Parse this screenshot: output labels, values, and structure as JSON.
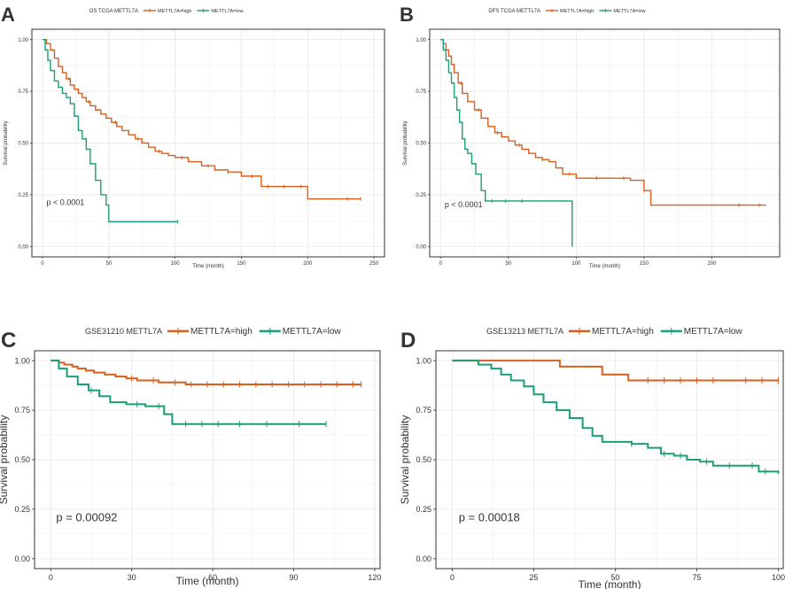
{
  "colors": {
    "high": "#D95F1E",
    "low": "#1B9E77",
    "grid": "#EBEBEB",
    "frame": "#333333"
  },
  "chart_data": [
    {
      "type": "line",
      "panel_label": "A",
      "title": "OS TCGA METTL7A",
      "xlabel": "Time (month)",
      "ylabel": "Survival probability",
      "xlim": [
        -8,
        258
      ],
      "ylim": [
        -0.05,
        1.05
      ],
      "xticks": [
        0,
        50,
        100,
        150,
        200,
        250
      ],
      "yticks": [
        0,
        0.25,
        0.5,
        0.75,
        1
      ],
      "ytick_labels": [
        "0.00",
        "0.25",
        "0.50",
        "0.75",
        "1.00"
      ],
      "p_value": "p < 0.0001",
      "p_pos": [
        3,
        0.2
      ],
      "legend": [
        "METTL7A=high",
        "METTL7A=low"
      ],
      "series": [
        {
          "name": "METTL7A=high",
          "color_key": "high",
          "x": [
            0,
            3,
            6,
            9,
            12,
            15,
            18,
            21,
            24,
            27,
            30,
            33,
            36,
            40,
            44,
            48,
            52,
            56,
            60,
            65,
            70,
            75,
            80,
            85,
            90,
            95,
            100,
            110,
            120,
            130,
            140,
            150,
            155,
            160,
            165,
            175,
            185,
            200,
            220,
            240
          ],
          "y": [
            1,
            0.98,
            0.95,
            0.91,
            0.87,
            0.84,
            0.81,
            0.78,
            0.76,
            0.74,
            0.72,
            0.7,
            0.68,
            0.66,
            0.64,
            0.62,
            0.6,
            0.58,
            0.56,
            0.54,
            0.52,
            0.5,
            0.48,
            0.46,
            0.45,
            0.44,
            0.43,
            0.41,
            0.39,
            0.37,
            0.36,
            0.34,
            0.34,
            0.34,
            0.29,
            0.29,
            0.29,
            0.23,
            0.23,
            0.23
          ],
          "censor_x": [
            20,
            35,
            55,
            72,
            88,
            105,
            125,
            140,
            158,
            170,
            182,
            195,
            230,
            240
          ]
        },
        {
          "name": "METTL7A=low",
          "color_key": "low",
          "x": [
            0,
            2,
            4,
            6,
            9,
            12,
            15,
            18,
            21,
            24,
            27,
            30,
            33,
            36,
            40,
            44,
            48,
            50,
            102
          ],
          "y": [
            1,
            0.95,
            0.9,
            0.85,
            0.8,
            0.77,
            0.74,
            0.72,
            0.69,
            0.63,
            0.56,
            0.52,
            0.47,
            0.4,
            0.32,
            0.25,
            0.2,
            0.12,
            0.12
          ],
          "censor_x": [
            102
          ]
        }
      ]
    },
    {
      "type": "line",
      "panel_label": "B",
      "title": "DFS TCGA METTL7A",
      "xlabel": "Time (month)",
      "ylabel": "Survival probability",
      "xlim": [
        -8,
        250
      ],
      "ylim": [
        -0.05,
        1.05
      ],
      "xticks": [
        0,
        50,
        100,
        150,
        200
      ],
      "yticks": [
        0,
        0.25,
        0.5,
        0.75,
        1
      ],
      "ytick_labels": [
        "0.00",
        "0.25",
        "0.50",
        "0.75",
        "1.00"
      ],
      "p_value": "p < 0.0001",
      "p_pos": [
        3,
        0.19
      ],
      "legend": [
        "METTL7A=high",
        "METTL7A=low"
      ],
      "series": [
        {
          "name": "METTL7A=high",
          "color_key": "high",
          "x": [
            0,
            2,
            4,
            6,
            8,
            10,
            13,
            16,
            20,
            25,
            30,
            35,
            40,
            45,
            50,
            55,
            60,
            65,
            70,
            75,
            80,
            85,
            90,
            100,
            110,
            120,
            130,
            140,
            150,
            155,
            158,
            200,
            240
          ],
          "y": [
            1,
            0.98,
            0.95,
            0.92,
            0.88,
            0.84,
            0.79,
            0.74,
            0.7,
            0.66,
            0.62,
            0.58,
            0.55,
            0.53,
            0.51,
            0.49,
            0.47,
            0.45,
            0.43,
            0.42,
            0.41,
            0.38,
            0.35,
            0.33,
            0.33,
            0.33,
            0.33,
            0.32,
            0.27,
            0.2,
            0.2,
            0.2,
            0.2
          ],
          "censor_x": [
            15,
            28,
            42,
            58,
            75,
            95,
            115,
            135,
            150,
            220,
            235
          ]
        },
        {
          "name": "METTL7A=low",
          "color_key": "low",
          "x": [
            0,
            2,
            4,
            6,
            8,
            10,
            12,
            14,
            16,
            18,
            20,
            23,
            26,
            30,
            33,
            97
          ],
          "y": [
            1,
            0.95,
            0.9,
            0.84,
            0.79,
            0.72,
            0.66,
            0.6,
            0.52,
            0.47,
            0.45,
            0.4,
            0.35,
            0.27,
            0.22,
            0.22
          ],
          "drop_to": 0,
          "censor_x": [
            38,
            48,
            60
          ]
        }
      ]
    },
    {
      "type": "line",
      "panel_label": "C",
      "title": "GSE31210 METTL7A",
      "xlabel": "Time (month)",
      "ylabel": "Survival probability",
      "xlim": [
        -6,
        122
      ],
      "ylim": [
        -0.05,
        1.05
      ],
      "xticks": [
        0,
        30,
        60,
        90,
        120
      ],
      "yticks": [
        0,
        0.25,
        0.5,
        0.75,
        1
      ],
      "ytick_labels": [
        "0.00",
        "0.25",
        "0.50",
        "0.75",
        "1.00"
      ],
      "p_value": "p = 0.00092",
      "p_pos": [
        2,
        0.19
      ],
      "legend": [
        "METTL7A=high",
        "METTL7A=low"
      ],
      "series": [
        {
          "name": "METTL7A=high",
          "color_key": "high",
          "x": [
            0,
            3,
            5,
            8,
            10,
            13,
            16,
            20,
            24,
            28,
            32,
            36,
            40,
            45,
            50,
            115
          ],
          "y": [
            1,
            0.99,
            0.98,
            0.97,
            0.96,
            0.95,
            0.94,
            0.93,
            0.92,
            0.91,
            0.9,
            0.9,
            0.89,
            0.89,
            0.88,
            0.88
          ],
          "censor_x": [
            30,
            38,
            46,
            52,
            58,
            64,
            70,
            76,
            82,
            88,
            94,
            100,
            106,
            112,
            115
          ]
        },
        {
          "name": "METTL7A=low",
          "color_key": "low",
          "x": [
            0,
            3,
            6,
            10,
            14,
            18,
            22,
            28,
            35,
            42,
            45,
            102
          ],
          "y": [
            1,
            0.96,
            0.92,
            0.88,
            0.85,
            0.82,
            0.79,
            0.78,
            0.77,
            0.73,
            0.68,
            0.68
          ],
          "censor_x": [
            15,
            32,
            40,
            50,
            56,
            62,
            70,
            80,
            92,
            102
          ]
        }
      ]
    },
    {
      "type": "line",
      "panel_label": "D",
      "title": "GSE13213 METTL7A",
      "xlabel": "Time (month)",
      "ylabel": "Survival probability",
      "xlim": [
        -5,
        101.5
      ],
      "ylim": [
        -0.05,
        1.05
      ],
      "xticks": [
        0,
        25,
        50,
        75,
        100
      ],
      "yticks": [
        0,
        0.25,
        0.5,
        0.75,
        1
      ],
      "ytick_labels": [
        "0.00",
        "0.25",
        "0.50",
        "0.75",
        "1.00"
      ],
      "p_value": "p = 0.00018",
      "p_pos": [
        2,
        0.19
      ],
      "legend": [
        "METTL7A=high",
        "METTL7A=low"
      ],
      "series": [
        {
          "name": "METTL7A=high",
          "color_key": "high",
          "x": [
            0,
            33,
            46,
            54,
            100
          ],
          "y": [
            1,
            0.97,
            0.93,
            0.9,
            0.9
          ],
          "censor_x": [
            60,
            65,
            70,
            75,
            80,
            90,
            95,
            100
          ]
        },
        {
          "name": "METTL7A=low",
          "color_key": "low",
          "x": [
            0,
            8,
            12,
            15,
            18,
            22,
            25,
            28,
            32,
            36,
            40,
            43,
            46,
            50,
            55,
            60,
            64,
            68,
            72,
            76,
            80,
            88,
            94,
            100
          ],
          "y": [
            1,
            0.98,
            0.96,
            0.93,
            0.9,
            0.87,
            0.83,
            0.79,
            0.75,
            0.71,
            0.66,
            0.62,
            0.59,
            0.59,
            0.58,
            0.56,
            0.53,
            0.52,
            0.5,
            0.49,
            0.47,
            0.47,
            0.44,
            0.43
          ],
          "censor_x": [
            55,
            65,
            70,
            78,
            85,
            92,
            96
          ]
        }
      ]
    }
  ]
}
